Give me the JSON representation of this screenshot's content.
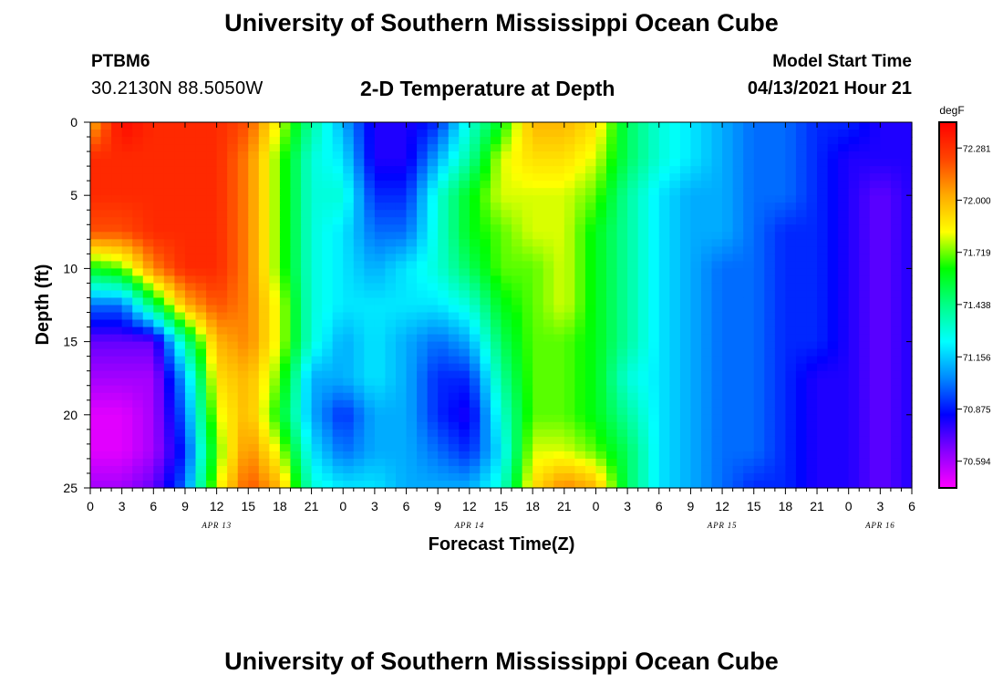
{
  "header": {
    "title_top": "University of Southern Mississippi Ocean Cube",
    "title_bottom": "University of Southern Mississippi Ocean Cube",
    "station_id": "PTBM6",
    "coordinates": "30.2130N  88.5050W",
    "plot_title": "2-D Temperature at Depth",
    "model_start_label": "Model Start Time",
    "model_start_value": "04/13/2021 Hour 21"
  },
  "chart_data": {
    "type": "heatmap",
    "title": "2-D Temperature at Depth",
    "xlabel": "Forecast Time(Z)",
    "ylabel": "Depth (ft)",
    "x_unit": "hours from 04/13 00Z",
    "x_range": [
      0,
      78
    ],
    "y_range": [
      0,
      25
    ],
    "y_reversed": true,
    "x_ticks": [
      0,
      3,
      6,
      9,
      12,
      15,
      18,
      21,
      24,
      27,
      30,
      33,
      36,
      39,
      42,
      45,
      48,
      51,
      54,
      57,
      60,
      63,
      66,
      69,
      72,
      75,
      78
    ],
    "x_tick_labels": [
      "0",
      "3",
      "6",
      "9",
      "12",
      "15",
      "18",
      "21",
      "0",
      "3",
      "6",
      "9",
      "12",
      "15",
      "18",
      "21",
      "0",
      "3",
      "6",
      "9",
      "12",
      "15",
      "18",
      "21",
      "0",
      "3",
      "6"
    ],
    "y_ticks": [
      0,
      5,
      10,
      15,
      20,
      25
    ],
    "y_tick_labels": [
      "0",
      "5",
      "10",
      "15",
      "20",
      "25"
    ],
    "date_labels": [
      {
        "hour": 12,
        "text": "APR 13"
      },
      {
        "hour": 36,
        "text": "APR 14"
      },
      {
        "hour": 60,
        "text": "APR 15"
      },
      {
        "hour": 75,
        "text": "APR 16"
      }
    ],
    "colorbar": {
      "unit": "degF",
      "min": 70.45,
      "max": 72.42,
      "tick_values": [
        72.281,
        72.0,
        71.719,
        71.438,
        71.156,
        70.875,
        70.594
      ],
      "tick_labels": [
        "72.281",
        "72.000",
        "71.719",
        "71.438",
        "71.156",
        "70.875",
        "70.594"
      ]
    },
    "depths_ft": [
      0,
      2.5,
      5,
      7.5,
      10,
      12.5,
      15,
      17.5,
      20,
      22.5,
      25
    ],
    "hours": [
      0,
      3,
      6,
      9,
      12,
      15,
      18,
      21,
      24,
      27,
      30,
      33,
      36,
      39,
      42,
      45,
      48,
      51,
      54,
      57,
      60,
      63,
      66,
      69,
      72,
      75,
      78
    ],
    "temperature_degF": [
      [
        72.0,
        72.4,
        72.3,
        72.3,
        72.3,
        72.2,
        71.8,
        71.4,
        71.1,
        70.8,
        70.8,
        70.9,
        71.3,
        71.6,
        72.0,
        72.0,
        71.9,
        71.5,
        71.3,
        71.2,
        71.1,
        71.0,
        71.0,
        70.9,
        70.9,
        70.8,
        70.8
      ],
      [
        72.3,
        72.3,
        72.3,
        72.3,
        72.3,
        72.1,
        71.7,
        71.3,
        71.2,
        70.8,
        70.8,
        71.1,
        71.4,
        71.8,
        71.9,
        71.9,
        71.8,
        71.5,
        71.3,
        71.2,
        71.1,
        71.0,
        71.0,
        70.9,
        70.8,
        70.8,
        70.8
      ],
      [
        72.3,
        72.3,
        72.3,
        72.3,
        72.3,
        72.1,
        71.7,
        71.3,
        71.3,
        70.9,
        70.9,
        71.3,
        71.6,
        71.8,
        71.8,
        71.8,
        71.7,
        71.4,
        71.2,
        71.1,
        71.1,
        71.0,
        71.0,
        70.9,
        70.8,
        70.7,
        70.8
      ],
      [
        72.2,
        72.2,
        72.3,
        72.3,
        72.3,
        72.1,
        71.7,
        71.3,
        71.2,
        71.0,
        71.0,
        71.3,
        71.6,
        71.7,
        71.8,
        71.8,
        71.6,
        71.4,
        71.2,
        71.1,
        71.1,
        71.0,
        70.9,
        70.9,
        70.8,
        70.7,
        70.8
      ],
      [
        71.6,
        71.7,
        72.1,
        72.3,
        72.3,
        72.1,
        71.7,
        71.3,
        71.2,
        71.1,
        71.2,
        71.3,
        71.5,
        71.7,
        71.7,
        71.8,
        71.6,
        71.4,
        71.2,
        71.1,
        71.0,
        71.0,
        70.9,
        70.9,
        70.8,
        70.7,
        70.8
      ],
      [
        71.0,
        71.0,
        71.5,
        72.0,
        72.2,
        72.1,
        71.8,
        71.3,
        71.2,
        71.2,
        71.2,
        71.2,
        71.3,
        71.6,
        71.7,
        71.8,
        71.6,
        71.4,
        71.2,
        71.1,
        71.0,
        71.0,
        70.9,
        70.9,
        70.8,
        70.7,
        70.8
      ],
      [
        70.7,
        70.7,
        70.7,
        71.4,
        72.0,
        72.1,
        71.8,
        71.3,
        71.1,
        71.2,
        71.1,
        71.0,
        71.1,
        71.5,
        71.7,
        71.7,
        71.6,
        71.4,
        71.2,
        71.1,
        71.0,
        71.0,
        70.9,
        70.9,
        70.8,
        70.7,
        70.8
      ],
      [
        70.6,
        70.6,
        70.6,
        71.1,
        71.9,
        72.0,
        71.7,
        71.1,
        71.1,
        71.2,
        71.1,
        70.9,
        70.9,
        71.4,
        71.7,
        71.7,
        71.6,
        71.3,
        71.2,
        71.1,
        71.0,
        71.0,
        70.9,
        70.8,
        70.8,
        70.7,
        70.8
      ],
      [
        70.5,
        70.5,
        70.6,
        71.0,
        71.8,
        72.0,
        71.6,
        71.1,
        70.9,
        71.1,
        71.1,
        70.9,
        70.8,
        71.3,
        71.7,
        71.7,
        71.6,
        71.4,
        71.2,
        71.1,
        71.0,
        71.0,
        70.9,
        70.8,
        70.8,
        70.7,
        70.8
      ],
      [
        70.5,
        70.5,
        70.6,
        70.9,
        71.7,
        72.1,
        71.8,
        71.2,
        71.0,
        71.1,
        71.1,
        71.0,
        70.9,
        71.2,
        71.8,
        71.8,
        71.7,
        71.5,
        71.2,
        71.1,
        71.0,
        71.0,
        70.9,
        70.8,
        70.8,
        70.7,
        70.8
      ],
      [
        70.6,
        70.6,
        70.7,
        71.0,
        71.8,
        72.2,
        72.0,
        71.3,
        71.2,
        71.2,
        71.1,
        71.1,
        71.1,
        71.3,
        71.9,
        72.1,
        72.0,
        71.5,
        71.2,
        71.1,
        71.0,
        70.9,
        70.9,
        70.8,
        70.8,
        70.7,
        70.8
      ]
    ]
  },
  "colors": {
    "colorbar_stops": [
      "#ff00ff",
      "#8800ff",
      "#0000ff",
      "#0088ff",
      "#00ffff",
      "#00ff88",
      "#00ff00",
      "#ffff00",
      "#ffaa00",
      "#ff4400",
      "#ff0000"
    ]
  }
}
